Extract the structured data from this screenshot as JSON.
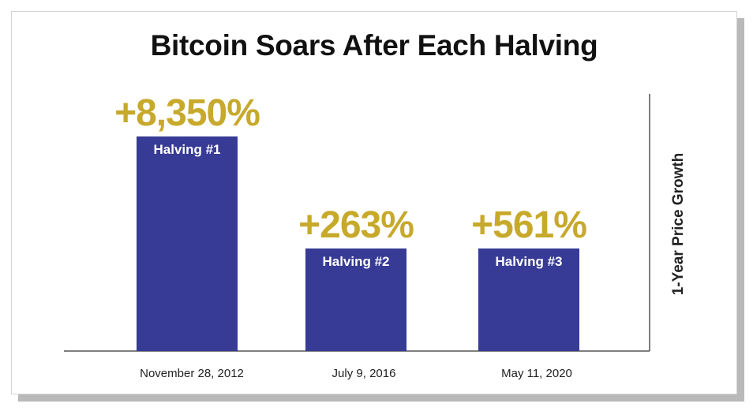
{
  "chart_data": {
    "type": "bar",
    "title": "Bitcoin Soars After Each Halving",
    "ylabel": "1-Year Price Growth",
    "xlabel": "",
    "categories": [
      "November 28, 2012",
      "July 9, 2016",
      "May 11, 2020"
    ],
    "bar_labels": [
      "Halving #1",
      "Halving #2",
      "Halving #3"
    ],
    "values": [
      8350,
      263,
      561
    ],
    "value_labels": [
      "+8,350%",
      "+263%",
      "+561%"
    ],
    "grid": false,
    "legend": "none",
    "colors": {
      "bar": "#373b96",
      "value_label": "#c7a92b",
      "axis": "#555555",
      "text": "#111111"
    }
  }
}
